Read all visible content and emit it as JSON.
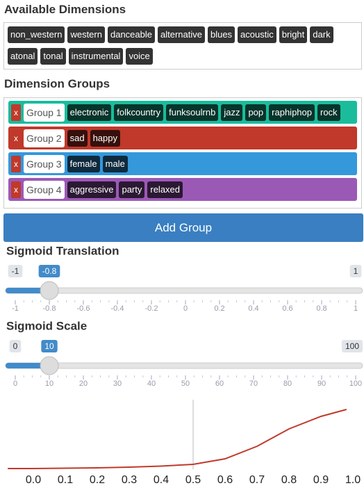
{
  "available": {
    "title": "Available Dimensions",
    "tags": [
      "non_western",
      "western",
      "danceable",
      "alternative",
      "blues",
      "acoustic",
      "bright",
      "dark",
      "atonal",
      "tonal",
      "instrumental",
      "voice"
    ]
  },
  "groups": {
    "title": "Dimension Groups",
    "items": [
      {
        "remove": "x",
        "name": "Group 1",
        "color": "#1abc9c",
        "tags": [
          "electronic",
          "folkcountry",
          "funksoulrnb",
          "jazz",
          "pop",
          "raphiphop",
          "rock"
        ]
      },
      {
        "remove": "x",
        "name": "Group 2",
        "color": "#c0392b",
        "tags": [
          "sad",
          "happy"
        ]
      },
      {
        "remove": "x",
        "name": "Group 3",
        "color": "#3498db",
        "tags": [
          "female",
          "male"
        ]
      },
      {
        "remove": "x",
        "name": "Group 4",
        "color": "#9b59b6",
        "tags": [
          "aggressive",
          "party",
          "relaxed"
        ]
      }
    ]
  },
  "add_button": "Add Group",
  "sliders": [
    {
      "title": "Sigmoid Translation",
      "min": -1,
      "max": 1,
      "value": -0.8,
      "ticks": [
        -1,
        -0.8,
        -0.6,
        -0.4,
        -0.2,
        0,
        0.2,
        0.4,
        0.6,
        0.8,
        1
      ]
    },
    {
      "title": "Sigmoid Scale",
      "min": 0,
      "max": 100,
      "value": 10,
      "ticks": [
        0,
        10,
        20,
        30,
        40,
        50,
        60,
        70,
        80,
        90,
        100
      ]
    }
  ],
  "chart_data": {
    "type": "line",
    "x": [
      -0.08,
      0,
      0.1,
      0.2,
      0.3,
      0.4,
      0.5,
      0.6,
      0.7,
      0.8,
      0.9,
      0.98
    ],
    "series": [
      {
        "color": "#c0392b",
        "values": [
          0.01,
          0.01,
          0.015,
          0.02,
          0.03,
          0.045,
          0.07,
          0.15,
          0.33,
          0.58,
          0.76,
          0.86
        ]
      }
    ],
    "xlim": [
      -0.09,
      1.03
    ],
    "ylim": [
      0,
      1
    ],
    "xticks": [
      {
        "value": 0,
        "label": "0.0"
      },
      0.1,
      0.2,
      0.3,
      0.4,
      0.5,
      0.6,
      0.7,
      0.8,
      0.9,
      {
        "value": 1,
        "label": "1.0"
      }
    ],
    "vline": 0.5
  }
}
